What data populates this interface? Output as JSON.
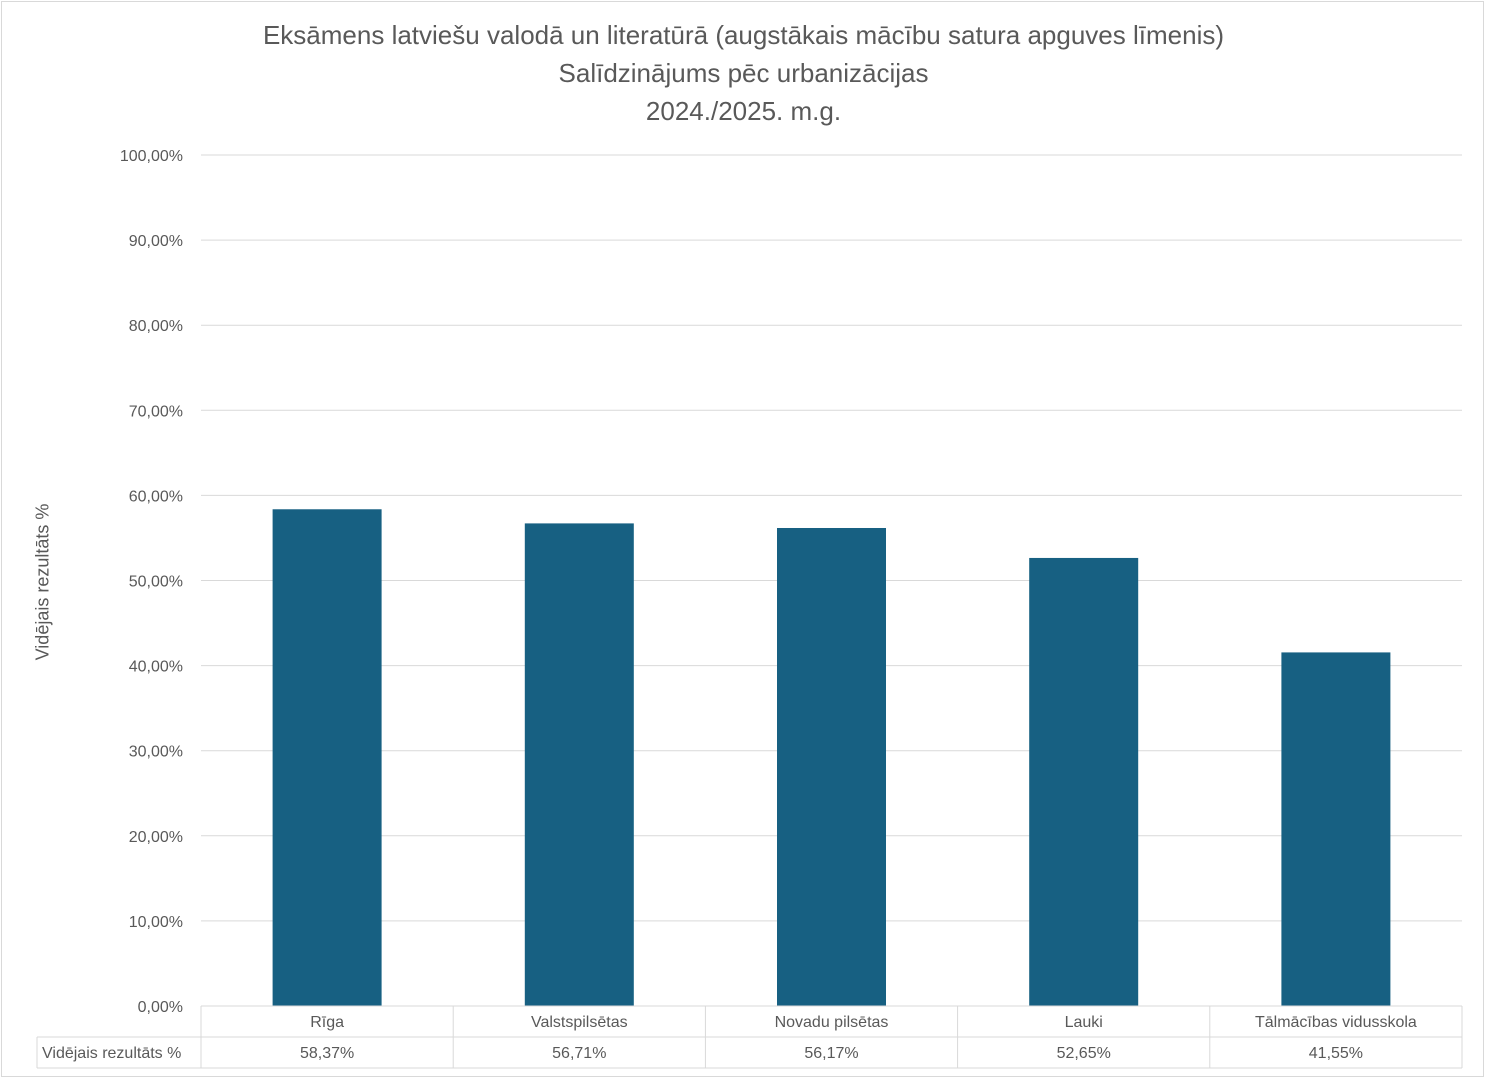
{
  "chart_data": {
    "type": "bar",
    "title_lines": [
      "Eksāmens latviešu valodā un literatūrā (augstākais mācību satura apguves līmenis)",
      "Salīdzinājums pēc urbanizācijas",
      "2024./2025. m.g."
    ],
    "ylabel": "Vidējais rezultāts %",
    "ylim": [
      0,
      100
    ],
    "yticks": [
      "0,00%",
      "10,00%",
      "20,00%",
      "30,00%",
      "40,00%",
      "50,00%",
      "60,00%",
      "70,00%",
      "80,00%",
      "90,00%",
      "100,00%"
    ],
    "categories": [
      "Rīga",
      "Valstspilsētas",
      "Novadu pilsētas",
      "Lauki",
      "Tālmācības vidusskola"
    ],
    "series": [
      {
        "name": "Vidējais rezultāts %",
        "values": [
          58.37,
          56.71,
          56.17,
          52.65,
          41.55
        ]
      }
    ],
    "table_row_label": "Vidējais rezultāts %",
    "table_values": [
      "58,37%",
      "56,71%",
      "56,17%",
      "52,65%",
      "41,55%"
    ],
    "grid": true,
    "bar_color": "#176082"
  }
}
